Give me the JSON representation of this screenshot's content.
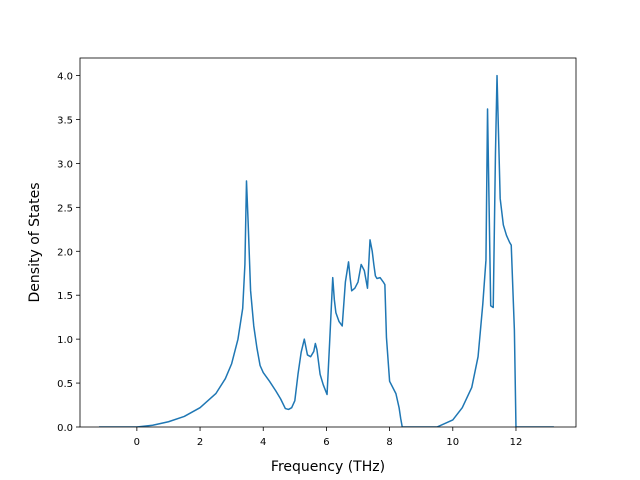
{
  "chart_data": {
    "type": "line",
    "title": "",
    "xlabel": "Frequency (THz)",
    "ylabel": "Density of States",
    "xlim": [
      -1.8,
      13.9
    ],
    "ylim": [
      0.0,
      4.2
    ],
    "x_ticks": [
      0,
      2,
      4,
      6,
      8,
      10,
      12
    ],
    "x_tick_labels": [
      "0",
      "2",
      "4",
      "6",
      "8",
      "10",
      "12"
    ],
    "y_ticks": [
      0.0,
      0.5,
      1.0,
      1.5,
      2.0,
      2.5,
      3.0,
      3.5,
      4.0
    ],
    "y_tick_labels": [
      "0.0",
      "0.5",
      "1.0",
      "1.5",
      "2.0",
      "2.5",
      "3.0",
      "3.5",
      "4.0"
    ],
    "grid": false,
    "legend": "none",
    "series": [
      {
        "color": "#1f77b4",
        "x": [
          -1.2,
          0.0,
          0.5,
          1.0,
          1.5,
          2.0,
          2.5,
          2.8,
          3.0,
          3.2,
          3.35,
          3.42,
          3.47,
          3.52,
          3.6,
          3.7,
          3.8,
          3.9,
          4.0,
          4.2,
          4.4,
          4.55,
          4.7,
          4.8,
          4.9,
          5.0,
          5.1,
          5.2,
          5.3,
          5.4,
          5.5,
          5.6,
          5.65,
          5.7,
          5.8,
          5.9,
          6.02,
          6.1,
          6.2,
          6.25,
          6.3,
          6.4,
          6.5,
          6.6,
          6.7,
          6.75,
          6.8,
          6.9,
          7.0,
          7.1,
          7.2,
          7.3,
          7.38,
          7.45,
          7.5,
          7.55,
          7.6,
          7.7,
          7.8,
          7.85,
          7.9,
          8.0,
          8.2,
          8.3,
          8.35,
          8.4,
          9.5,
          10.0,
          10.3,
          10.6,
          10.8,
          10.95,
          11.05,
          11.1,
          11.2,
          11.28,
          11.35,
          11.4,
          11.5,
          11.6,
          11.7,
          11.8,
          11.85,
          11.95,
          12.0,
          13.2
        ],
        "y": [
          0.0,
          0.0,
          0.02,
          0.06,
          0.12,
          0.22,
          0.38,
          0.55,
          0.72,
          1.0,
          1.35,
          1.85,
          2.8,
          2.35,
          1.55,
          1.15,
          0.9,
          0.7,
          0.62,
          0.52,
          0.41,
          0.32,
          0.21,
          0.2,
          0.22,
          0.3,
          0.6,
          0.85,
          1.0,
          0.82,
          0.8,
          0.86,
          0.95,
          0.88,
          0.6,
          0.48,
          0.37,
          0.95,
          1.7,
          1.45,
          1.3,
          1.2,
          1.15,
          1.65,
          1.88,
          1.7,
          1.55,
          1.58,
          1.65,
          1.85,
          1.78,
          1.58,
          2.13,
          2.0,
          1.85,
          1.72,
          1.69,
          1.7,
          1.65,
          1.62,
          1.02,
          0.52,
          0.38,
          0.22,
          0.1,
          0.0,
          0.0,
          0.08,
          0.22,
          0.45,
          0.8,
          1.4,
          1.9,
          3.62,
          1.38,
          1.36,
          3.1,
          4.0,
          2.6,
          2.3,
          2.18,
          2.1,
          2.07,
          1.1,
          0.0,
          0.0
        ]
      }
    ]
  }
}
